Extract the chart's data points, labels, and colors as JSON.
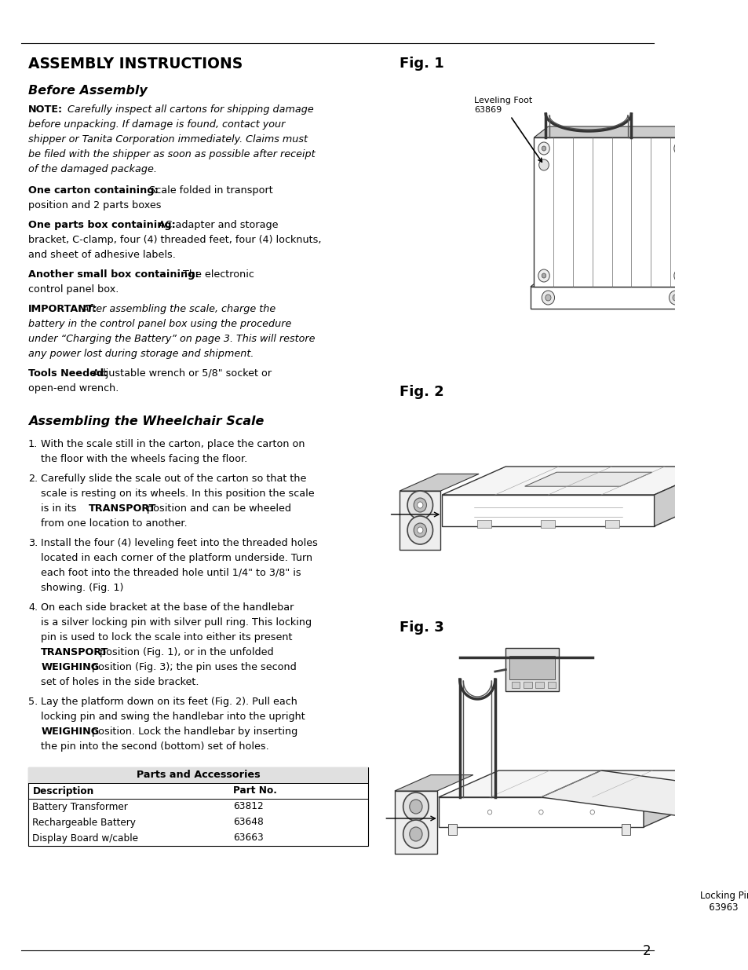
{
  "bg_color": "#ffffff",
  "page_width": 9.54,
  "page_height": 12.35,
  "title": "ASSEMBLY INSTRUCTIONS",
  "fig1_label": "Fig. 1",
  "fig2_label": "Fig. 2",
  "fig3_label": "Fig. 3",
  "section1_title": "Before Assembly",
  "section2_title": "Assembling the Wheelchair Scale",
  "table_header": "Parts and Accessories",
  "table_col1": "Description",
  "table_col2": "Part No.",
  "table_rows": [
    [
      "Battery Transformer",
      "63812"
    ],
    [
      "Rechargeable Battery",
      "63648"
    ],
    [
      "Display Board w/cable",
      "63663"
    ]
  ],
  "page_num": "2"
}
